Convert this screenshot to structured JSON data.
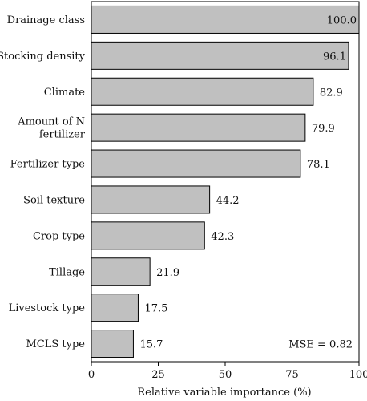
{
  "chart_data": {
    "type": "bar",
    "orientation": "horizontal",
    "categories": [
      [
        "Drainage class"
      ],
      [
        "Stocking density"
      ],
      [
        "Climate"
      ],
      [
        "Amount of N",
        "fertilizer"
      ],
      [
        "Fertilizer type"
      ],
      [
        "Soil texture"
      ],
      [
        "Crop type"
      ],
      [
        "Tillage"
      ],
      [
        "Livestock type"
      ],
      [
        "MCLS type"
      ]
    ],
    "values": [
      100.0,
      96.1,
      82.9,
      79.9,
      78.1,
      44.2,
      42.3,
      21.9,
      17.5,
      15.7
    ],
    "value_labels": [
      "100.0",
      "96.1",
      "82.9",
      "79.9",
      "78.1",
      "44.2",
      "42.3",
      "21.9",
      "17.5",
      "15.7"
    ],
    "xlabel": "Relative variable importance (%)",
    "ylabel": "",
    "title": "",
    "xlim": [
      0,
      100
    ],
    "xticks": [
      0,
      25,
      50,
      75,
      100
    ],
    "annotation": "MSE = 0.82",
    "annotation_position": "bottom-right",
    "grid": false,
    "bar_color": "#c0c0c0",
    "bar_edge_color": "#000000"
  }
}
